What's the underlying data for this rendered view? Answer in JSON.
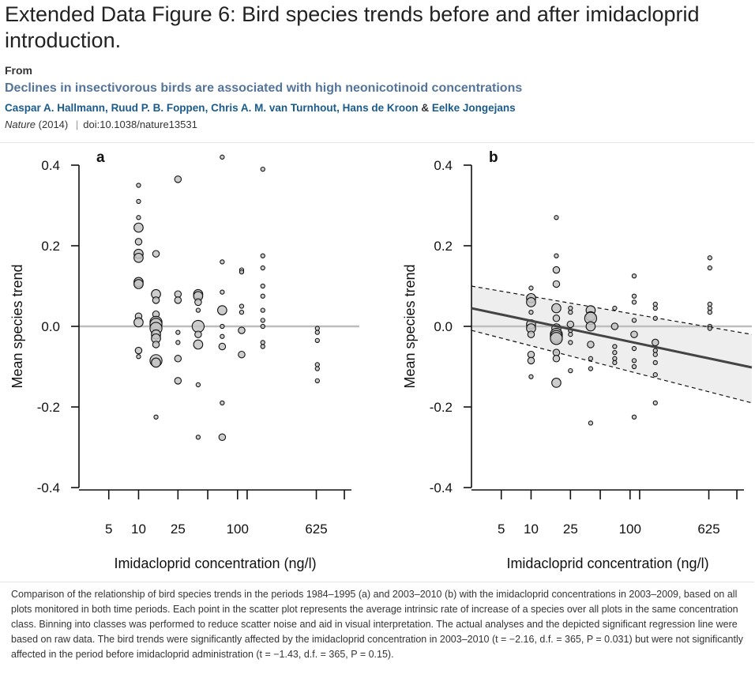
{
  "header": {
    "figure_title": "Extended Data Figure 6: Bird species trends before and after imidacloprid introduction.",
    "from_label": "From",
    "article_title": "Declines in insectivorous birds are associated with high neonicotinoid concentrations",
    "authors": [
      "Caspar A. Hallmann",
      "Ruud P. B. Foppen",
      "Chris A. M. van Turnhout",
      "Hans de Kroon",
      "Eelke Jongejans"
    ],
    "journal": "Nature",
    "year": "(2014)",
    "doi": "doi:10.1038/nature13531"
  },
  "caption": "Comparison of the relationship of bird species trends in the periods 1984–1995 (a) and 2003–2010 (b) with the imidacloprid concentrations in 2003–2009, based on all plots monitored in both time periods. Each point in the scatter plot represents the average intrinsic rate of increase of a species over all plots in the same concentration class. Binning into classes was performed to reduce scatter noise and aid in visual interpretation. The actual analyses and the depicted significant regression line were based on raw data. The bird trends were significantly affected by the imidacloprid concentration in 2003–2010 (t = −2.16, d.f. = 365, P = 0.031) but were not significantly affected in the period before imidacloprid administration (t = −1.43, d.f. = 365, P = 0.15).",
  "chart_data": [
    {
      "type": "scatter",
      "panel_label": "a",
      "xlabel": "Imidacloprid concentration (ng/l)",
      "ylabel": "Mean species trend",
      "x_scale": "log",
      "xlim": [
        2.5,
        1700
      ],
      "ylim": [
        -0.4,
        0.4
      ],
      "yticks": [
        "0.4",
        "0.2",
        "0.0",
        "-0.2",
        "-0.4"
      ],
      "ytick_values": [
        0.4,
        0.2,
        0.0,
        -0.2,
        -0.4
      ],
      "xtick_labels": [
        "5",
        "10",
        "25",
        "100",
        "625"
      ],
      "xtick_label_values": [
        5,
        10,
        25,
        100,
        625
      ],
      "xtick_marks": [
        5,
        10,
        25,
        50,
        100,
        125,
        625,
        1200
      ],
      "reference_line_y": 0.0,
      "points": [
        {
          "x": 10,
          "y": 0.35,
          "s": 1
        },
        {
          "x": 10,
          "y": 0.31,
          "s": 1
        },
        {
          "x": 10,
          "y": 0.27,
          "s": 1
        },
        {
          "x": 10,
          "y": 0.245,
          "s": 3
        },
        {
          "x": 10,
          "y": 0.21,
          "s": 2
        },
        {
          "x": 10,
          "y": 0.18,
          "s": 3
        },
        {
          "x": 10,
          "y": 0.17,
          "s": 3
        },
        {
          "x": 10,
          "y": 0.11,
          "s": 3
        },
        {
          "x": 10,
          "y": 0.105,
          "s": 3
        },
        {
          "x": 10,
          "y": 0.025,
          "s": 2
        },
        {
          "x": 10,
          "y": 0.01,
          "s": 3
        },
        {
          "x": 10,
          "y": -0.06,
          "s": 2
        },
        {
          "x": 10,
          "y": -0.075,
          "s": 1
        },
        {
          "x": 15,
          "y": 0.18,
          "s": 2
        },
        {
          "x": 15,
          "y": 0.08,
          "s": 3
        },
        {
          "x": 15,
          "y": 0.065,
          "s": 2
        },
        {
          "x": 15,
          "y": 0.03,
          "s": 2
        },
        {
          "x": 15,
          "y": 0.01,
          "s": 4
        },
        {
          "x": 15,
          "y": 0.005,
          "s": 4
        },
        {
          "x": 15,
          "y": -0.005,
          "s": 4
        },
        {
          "x": 15,
          "y": -0.02,
          "s": 3
        },
        {
          "x": 15,
          "y": -0.03,
          "s": 3
        },
        {
          "x": 15,
          "y": -0.045,
          "s": 2
        },
        {
          "x": 15,
          "y": -0.085,
          "s": 4
        },
        {
          "x": 15,
          "y": -0.09,
          "s": 3
        },
        {
          "x": 15,
          "y": -0.225,
          "s": 1
        },
        {
          "x": 25,
          "y": 0.365,
          "s": 2
        },
        {
          "x": 25,
          "y": 0.08,
          "s": 2
        },
        {
          "x": 25,
          "y": 0.065,
          "s": 2
        },
        {
          "x": 25,
          "y": -0.015,
          "s": 1
        },
        {
          "x": 25,
          "y": -0.04,
          "s": 1
        },
        {
          "x": 25,
          "y": -0.08,
          "s": 2
        },
        {
          "x": 25,
          "y": -0.135,
          "s": 2
        },
        {
          "x": 40,
          "y": 0.08,
          "s": 3
        },
        {
          "x": 40,
          "y": 0.075,
          "s": 3
        },
        {
          "x": 40,
          "y": 0.06,
          "s": 2
        },
        {
          "x": 40,
          "y": 0.04,
          "s": 1
        },
        {
          "x": 40,
          "y": 0.0,
          "s": 4
        },
        {
          "x": 40,
          "y": -0.02,
          "s": 2
        },
        {
          "x": 40,
          "y": -0.045,
          "s": 3
        },
        {
          "x": 40,
          "y": -0.145,
          "s": 1
        },
        {
          "x": 40,
          "y": -0.275,
          "s": 1
        },
        {
          "x": 70,
          "y": 0.42,
          "s": 1
        },
        {
          "x": 70,
          "y": 0.16,
          "s": 1
        },
        {
          "x": 70,
          "y": 0.085,
          "s": 1
        },
        {
          "x": 70,
          "y": 0.04,
          "s": 3
        },
        {
          "x": 70,
          "y": 0.0,
          "s": 1
        },
        {
          "x": 70,
          "y": -0.025,
          "s": 1
        },
        {
          "x": 70,
          "y": -0.05,
          "s": 2
        },
        {
          "x": 70,
          "y": -0.19,
          "s": 1
        },
        {
          "x": 70,
          "y": -0.275,
          "s": 2
        },
        {
          "x": 110,
          "y": 0.14,
          "s": 1
        },
        {
          "x": 110,
          "y": 0.135,
          "s": 1
        },
        {
          "x": 110,
          "y": 0.05,
          "s": 1
        },
        {
          "x": 110,
          "y": 0.035,
          "s": 1
        },
        {
          "x": 110,
          "y": -0.01,
          "s": 2
        },
        {
          "x": 110,
          "y": -0.07,
          "s": 2
        },
        {
          "x": 180,
          "y": 0.39,
          "s": 1
        },
        {
          "x": 180,
          "y": 0.175,
          "s": 1
        },
        {
          "x": 180,
          "y": 0.145,
          "s": 1
        },
        {
          "x": 180,
          "y": 0.1,
          "s": 1
        },
        {
          "x": 180,
          "y": 0.075,
          "s": 1
        },
        {
          "x": 180,
          "y": 0.04,
          "s": 1
        },
        {
          "x": 180,
          "y": 0.015,
          "s": 1
        },
        {
          "x": 180,
          "y": 0.0,
          "s": 1
        },
        {
          "x": 180,
          "y": -0.04,
          "s": 1
        },
        {
          "x": 180,
          "y": -0.05,
          "s": 1
        },
        {
          "x": 640,
          "y": -0.005,
          "s": 1
        },
        {
          "x": 640,
          "y": -0.015,
          "s": 1
        },
        {
          "x": 640,
          "y": -0.035,
          "s": 1
        },
        {
          "x": 640,
          "y": -0.095,
          "s": 1
        },
        {
          "x": 640,
          "y": -0.105,
          "s": 1
        },
        {
          "x": 640,
          "y": -0.135,
          "s": 1
        }
      ]
    },
    {
      "type": "scatter",
      "panel_label": "b",
      "xlabel": "Imidacloprid concentration (ng/l)",
      "ylabel": "Mean species trend",
      "x_scale": "log",
      "xlim": [
        2.5,
        1700
      ],
      "ylim": [
        -0.4,
        0.4
      ],
      "yticks": [
        "0.4",
        "0.2",
        "0.0",
        "-0.2",
        "-0.4"
      ],
      "ytick_values": [
        0.4,
        0.2,
        0.0,
        -0.2,
        -0.4
      ],
      "xtick_labels": [
        "5",
        "10",
        "25",
        "100",
        "625"
      ],
      "xtick_label_values": [
        5,
        10,
        25,
        100,
        625
      ],
      "xtick_marks": [
        5,
        10,
        25,
        50,
        100,
        125,
        625,
        1200
      ],
      "reference_line_y": 0.0,
      "regression": {
        "x": [
          2.5,
          1700
        ],
        "fit": [
          0.045,
          -0.102
        ],
        "lower": [
          -0.01,
          -0.19
        ],
        "upper": [
          0.1,
          -0.02
        ]
      },
      "points": [
        {
          "x": 10,
          "y": 0.095,
          "s": 1
        },
        {
          "x": 10,
          "y": 0.07,
          "s": 3
        },
        {
          "x": 10,
          "y": 0.06,
          "s": 3
        },
        {
          "x": 10,
          "y": 0.035,
          "s": 1
        },
        {
          "x": 10,
          "y": 0.005,
          "s": 3
        },
        {
          "x": 10,
          "y": -0.005,
          "s": 3
        },
        {
          "x": 10,
          "y": -0.02,
          "s": 2
        },
        {
          "x": 10,
          "y": -0.07,
          "s": 2
        },
        {
          "x": 10,
          "y": -0.085,
          "s": 2
        },
        {
          "x": 10,
          "y": -0.125,
          "s": 1
        },
        {
          "x": 18,
          "y": 0.27,
          "s": 1
        },
        {
          "x": 18,
          "y": 0.175,
          "s": 1
        },
        {
          "x": 18,
          "y": 0.14,
          "s": 2
        },
        {
          "x": 18,
          "y": 0.105,
          "s": 2
        },
        {
          "x": 18,
          "y": 0.045,
          "s": 3
        },
        {
          "x": 18,
          "y": 0.02,
          "s": 2
        },
        {
          "x": 18,
          "y": -0.005,
          "s": 3
        },
        {
          "x": 18,
          "y": -0.02,
          "s": 4
        },
        {
          "x": 18,
          "y": -0.025,
          "s": 4
        },
        {
          "x": 18,
          "y": -0.03,
          "s": 4
        },
        {
          "x": 18,
          "y": -0.065,
          "s": 2
        },
        {
          "x": 18,
          "y": -0.08,
          "s": 2
        },
        {
          "x": 18,
          "y": -0.14,
          "s": 3
        },
        {
          "x": 25,
          "y": 0.045,
          "s": 1
        },
        {
          "x": 25,
          "y": 0.035,
          "s": 1
        },
        {
          "x": 25,
          "y": 0.005,
          "s": 2
        },
        {
          "x": 25,
          "y": -0.01,
          "s": 1
        },
        {
          "x": 25,
          "y": -0.02,
          "s": 1
        },
        {
          "x": 25,
          "y": -0.04,
          "s": 1
        },
        {
          "x": 25,
          "y": -0.11,
          "s": 1
        },
        {
          "x": 40,
          "y": 0.04,
          "s": 3
        },
        {
          "x": 40,
          "y": 0.025,
          "s": 3
        },
        {
          "x": 40,
          "y": 0.02,
          "s": 4
        },
        {
          "x": 40,
          "y": 0.0,
          "s": 3
        },
        {
          "x": 40,
          "y": -0.045,
          "s": 2
        },
        {
          "x": 40,
          "y": -0.08,
          "s": 1
        },
        {
          "x": 40,
          "y": -0.105,
          "s": 1
        },
        {
          "x": 40,
          "y": -0.24,
          "s": 1
        },
        {
          "x": 70,
          "y": 0.045,
          "s": 1
        },
        {
          "x": 70,
          "y": 0.0,
          "s": 2
        },
        {
          "x": 70,
          "y": -0.05,
          "s": 1
        },
        {
          "x": 70,
          "y": -0.065,
          "s": 1
        },
        {
          "x": 70,
          "y": -0.08,
          "s": 1
        },
        {
          "x": 70,
          "y": -0.09,
          "s": 1
        },
        {
          "x": 110,
          "y": 0.125,
          "s": 1
        },
        {
          "x": 110,
          "y": 0.075,
          "s": 1
        },
        {
          "x": 110,
          "y": 0.06,
          "s": 1
        },
        {
          "x": 110,
          "y": 0.015,
          "s": 1
        },
        {
          "x": 110,
          "y": -0.02,
          "s": 2
        },
        {
          "x": 110,
          "y": -0.055,
          "s": 1
        },
        {
          "x": 110,
          "y": -0.085,
          "s": 1
        },
        {
          "x": 110,
          "y": -0.1,
          "s": 1
        },
        {
          "x": 110,
          "y": -0.225,
          "s": 1
        },
        {
          "x": 180,
          "y": 0.055,
          "s": 1
        },
        {
          "x": 180,
          "y": 0.045,
          "s": 1
        },
        {
          "x": 180,
          "y": 0.02,
          "s": 1
        },
        {
          "x": 180,
          "y": -0.04,
          "s": 2
        },
        {
          "x": 180,
          "y": -0.06,
          "s": 1
        },
        {
          "x": 180,
          "y": -0.07,
          "s": 1
        },
        {
          "x": 180,
          "y": -0.09,
          "s": 1
        },
        {
          "x": 180,
          "y": -0.12,
          "s": 1
        },
        {
          "x": 180,
          "y": -0.19,
          "s": 1
        },
        {
          "x": 640,
          "y": 0.17,
          "s": 1
        },
        {
          "x": 640,
          "y": 0.145,
          "s": 1
        },
        {
          "x": 640,
          "y": 0.055,
          "s": 1
        },
        {
          "x": 640,
          "y": 0.045,
          "s": 1
        },
        {
          "x": 640,
          "y": 0.035,
          "s": 1
        },
        {
          "x": 640,
          "y": 0.0,
          "s": 1
        },
        {
          "x": 640,
          "y": -0.005,
          "s": 1
        }
      ]
    }
  ],
  "colors": {
    "link": "#1a5b8c",
    "article_title": "#55749a",
    "point_fill": "#c4c4c4",
    "reference_line": "#bdbdbd",
    "ci_band": "#eeeeee",
    "regression_line": "#444444"
  }
}
